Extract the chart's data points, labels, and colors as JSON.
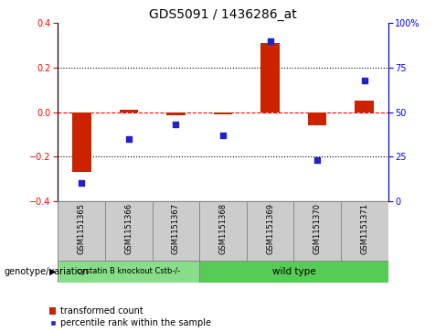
{
  "title": "GDS5091 / 1436286_at",
  "samples": [
    "GSM1151365",
    "GSM1151366",
    "GSM1151367",
    "GSM1151368",
    "GSM1151369",
    "GSM1151370",
    "GSM1151371"
  ],
  "transformed_count": [
    -0.27,
    0.01,
    -0.015,
    -0.01,
    0.31,
    -0.06,
    0.05
  ],
  "percentile_rank": [
    10,
    35,
    43,
    37,
    90,
    23,
    68
  ],
  "ylim_left": [
    -0.4,
    0.4
  ],
  "ylim_right": [
    0,
    100
  ],
  "yticks_left": [
    -0.4,
    -0.2,
    0.0,
    0.2,
    0.4
  ],
  "yticks_right": [
    0,
    25,
    50,
    75,
    100
  ],
  "hlines": [
    0.2,
    -0.2
  ],
  "zero_line": 0.0,
  "bar_color": "#cc2200",
  "dot_color": "#2222cc",
  "background_color": "#ffffff",
  "group1_label": "cystatin B knockout Cstb-/-",
  "group2_label": "wild type",
  "group1_indices": [
    0,
    1,
    2
  ],
  "group2_indices": [
    3,
    4,
    5,
    6
  ],
  "group1_color": "#88dd88",
  "group2_color": "#55cc55",
  "genotype_label": "genotype/variation",
  "legend_bar_label": "transformed count",
  "legend_dot_label": "percentile rank within the sample",
  "tick_label_fontsize": 7,
  "title_fontsize": 10,
  "label_box_color": "#cccccc",
  "label_box_edge": "#888888"
}
